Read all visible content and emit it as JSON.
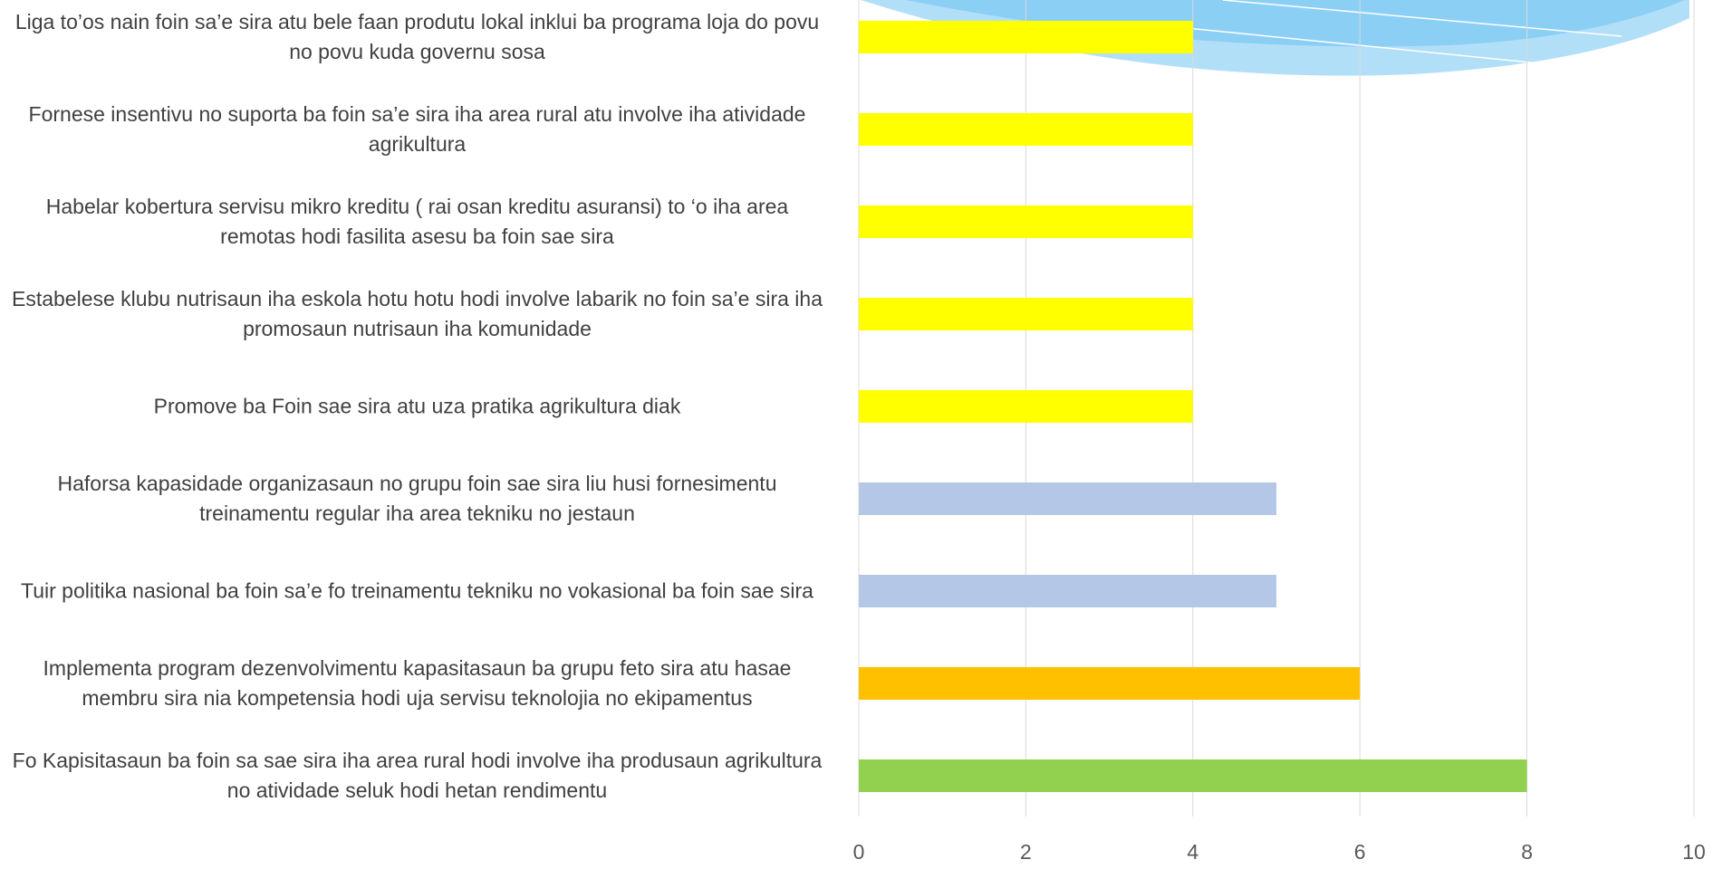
{
  "chart_data": {
    "type": "bar",
    "orientation": "horizontal",
    "categories": [
      "Liga to’os nain foin sa’e sira atu bele faan produtu lokal inklui ba programa loja do povu no povu kuda governu sosa",
      "Fornese insentivu no suporta ba foin sa’e sira iha area rural atu involve iha atividade agrikultura",
      "Habelar kobertura servisu mikro kreditu ( rai osan kreditu asuransi) to ‘o iha area remotas hodi fasilita asesu ba foin sae sira",
      "Estabelese klubu nutrisaun iha eskola hotu hotu hodi involve labarik no foin sa’e sira iha promosaun nutrisaun iha komunidade",
      "Promove ba Foin sae sira atu uza pratika agrikultura diak",
      "Haforsa kapasidade organizasaun no grupu foin sae sira liu husi fornesimentu treinamentu regular iha area tekniku no jestaun",
      "Tuir politika nasional ba foin sa’e fo treinamentu tekniku no vokasional ba foin sae sira",
      "Implementa program dezenvolvimentu kapasitasaun ba grupu feto sira atu hasae membru sira nia kompetensia hodi uja servisu teknolojia no ekipamentus",
      "Fo Kapisitasaun ba foin sa sae sira iha area rural hodi involve iha produsaun agrikultura no atividade seluk hodi hetan rendimentu"
    ],
    "values": [
      4,
      4,
      4,
      4,
      4,
      5,
      5,
      6,
      8
    ],
    "colors": [
      "#ffff00",
      "#ffff00",
      "#ffff00",
      "#ffff00",
      "#ffff00",
      "#b4c7e7",
      "#b4c7e7",
      "#ffc000",
      "#92d050"
    ],
    "xlim": [
      0,
      10
    ],
    "xticks": [
      0,
      2,
      4,
      6,
      8,
      10
    ],
    "grid": true
  }
}
